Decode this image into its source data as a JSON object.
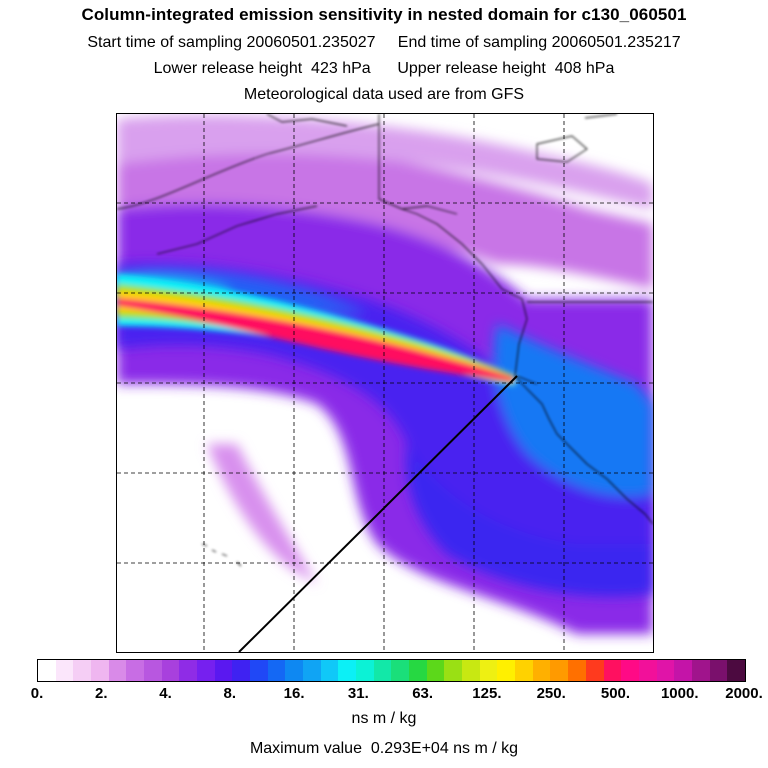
{
  "header": {
    "title": "Column-integrated emission sensitivity in nested domain for c130_060501",
    "sampling_line": "Start time of sampling 20060501.235027     End time of sampling 20060501.235217",
    "release_line": "Lower release height  423 hPa      Upper release height  408 hPa",
    "met_line": "Meteorological data used are from GFS"
  },
  "colorbar": {
    "unit": "ns m / kg",
    "tick_labels": [
      "0.",
      "2.",
      "4.",
      "8.",
      "16.",
      "31.",
      "63.",
      "125.",
      "250.",
      "500.",
      "1000.",
      "2000."
    ],
    "colors": [
      "#ffffff",
      "#fbe6fb",
      "#f5cef5",
      "#efb6f0",
      "#d98ae8",
      "#c86de4",
      "#b857e0",
      "#a840dd",
      "#8f2ce6",
      "#7620ef",
      "#5a18f0",
      "#3f22f2",
      "#2048f6",
      "#1468f4",
      "#0e88f2",
      "#10a4f4",
      "#10c8f8",
      "#0cf0f6",
      "#0cf2d6",
      "#12e8a8",
      "#1adf7a",
      "#26d842",
      "#5cd81a",
      "#9ae014",
      "#c8e812",
      "#eef012",
      "#fff000",
      "#ffd200",
      "#ffb000",
      "#ff9a00",
      "#ff7000",
      "#ff3a1e",
      "#ff1060",
      "#ff0a86",
      "#f2109a",
      "#e014a8",
      "#c414a8",
      "#a0148c",
      "#7a106c",
      "#4c0a40"
    ]
  },
  "footer": {
    "max_value": "Maximum value  0.293E+04 ns m / kg"
  }
}
